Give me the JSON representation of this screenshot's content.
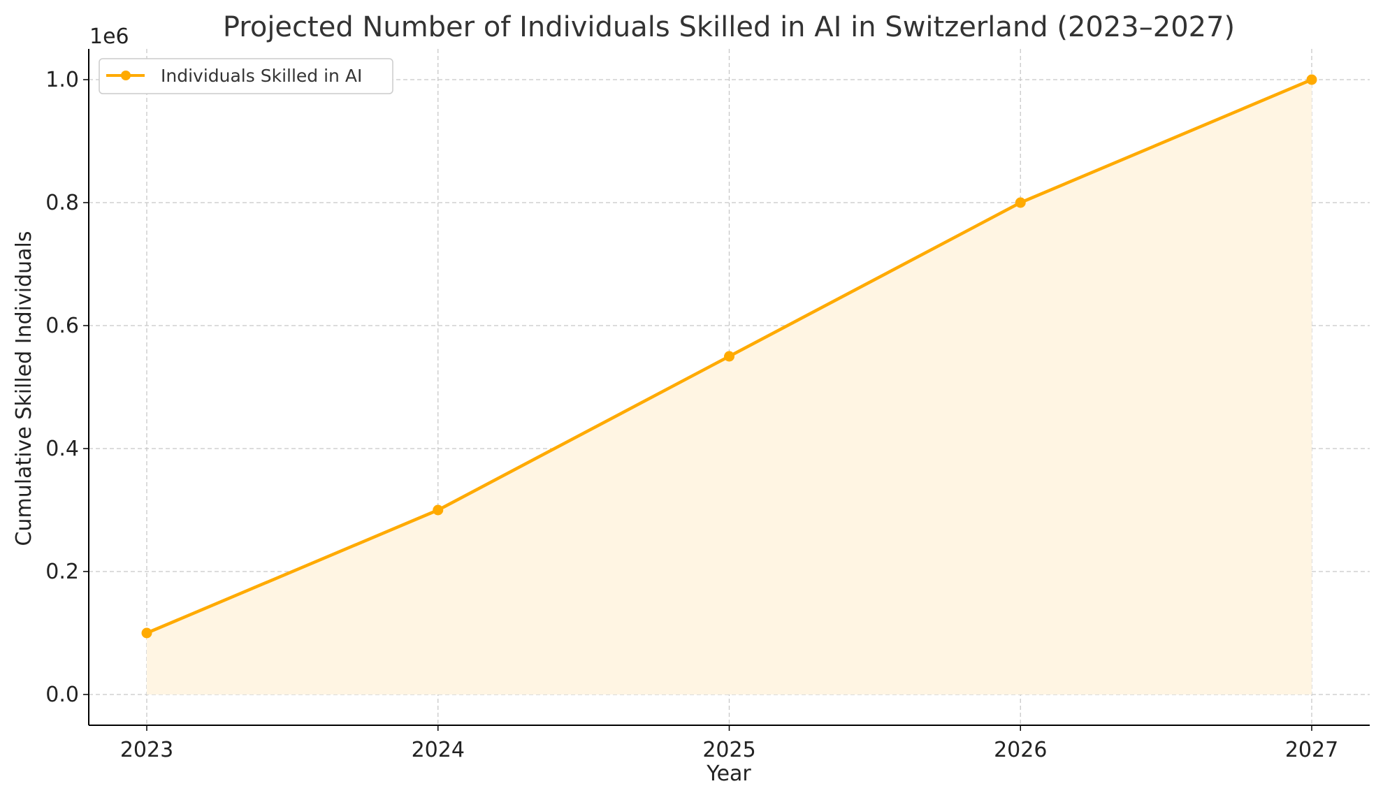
{
  "chart_data": {
    "type": "area",
    "title": "Projected Number of Individuals Skilled in AI in Switzerland (2023–2027)",
    "xlabel": "Year",
    "ylabel": "Cumulative Skilled Individuals",
    "y_offset_label": "1e6",
    "x": [
      "2023",
      "2024",
      "2025",
      "2026",
      "2027"
    ],
    "series": [
      {
        "name": "Individuals Skilled in AI",
        "values": [
          100000,
          300000,
          550000,
          800000,
          1000000
        ]
      }
    ],
    "ylim": [
      -50000,
      1050000
    ],
    "y_ticks": [
      0,
      200000,
      400000,
      600000,
      800000,
      1000000
    ],
    "y_tick_labels": [
      "0.0",
      "0.2",
      "0.4",
      "0.6",
      "0.8",
      "1.0"
    ],
    "grid": true,
    "grid_style": "dashed",
    "legend_position": "top-left",
    "colors": {
      "line": "#FFAA00",
      "fill": "#FFF5E3",
      "grid": "#c8c8c8",
      "axis": "#000000"
    }
  }
}
